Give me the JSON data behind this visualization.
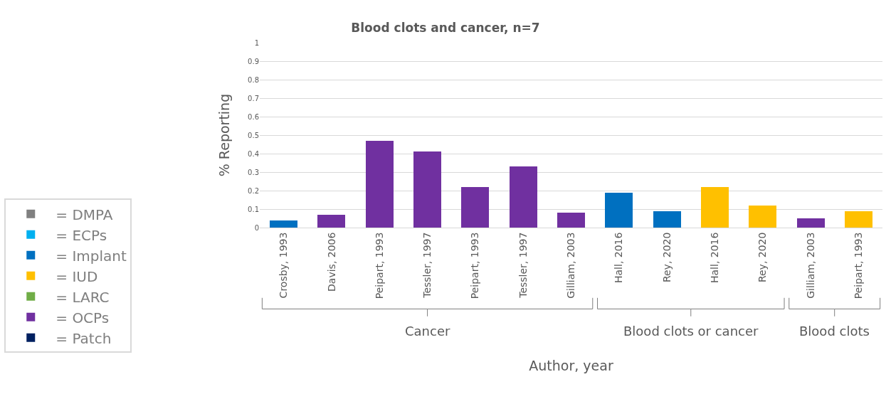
{
  "chart_data": {
    "type": "bar",
    "stacked": true,
    "title": "Blood clots and cancer, n=7",
    "xlabel": "Author, year",
    "ylabel": "% Reporting",
    "categories": [
      "Crosby, 1993",
      "Davis, 2006",
      "Peipart, 1993",
      "Tessler, 1997",
      "Peipart, 1993",
      "Tessler, 1997",
      "Gilliam, 2003",
      "Hall, 2016",
      "Rey, 2020",
      "Hall, 2016",
      "Rey, 2020",
      "Gilliam, 2003",
      "Peipart, 1993"
    ],
    "series": [
      {
        "name": "= DMPA",
        "color": "#808080",
        "values": [
          null,
          null,
          null,
          null,
          null,
          null,
          null,
          null,
          null,
          null,
          null,
          null,
          null
        ]
      },
      {
        "name": "= ECPs",
        "color": "#00b0f0",
        "values": [
          null,
          null,
          null,
          null,
          null,
          null,
          null,
          null,
          null,
          null,
          null,
          null,
          null
        ]
      },
      {
        "name": "= Implant",
        "color": "#0070c0",
        "values": [
          0.04,
          null,
          null,
          null,
          null,
          null,
          null,
          0.19,
          0.09,
          null,
          null,
          null,
          null
        ]
      },
      {
        "name": "= IUD",
        "color": "#ffc000",
        "values": [
          null,
          null,
          null,
          null,
          null,
          null,
          null,
          null,
          null,
          0.22,
          0.12,
          null,
          0.09
        ]
      },
      {
        "name": "= LARC",
        "color": "#70ad47",
        "values": [
          null,
          null,
          null,
          null,
          null,
          null,
          null,
          null,
          null,
          null,
          null,
          null,
          null
        ]
      },
      {
        "name": "= OCPs",
        "color": "#7030a0",
        "values": [
          null,
          0.07,
          0.47,
          0.41,
          0.22,
          0.33,
          0.08,
          null,
          null,
          null,
          null,
          0.05,
          null
        ]
      },
      {
        "name": "= Patch",
        "color": "#002060",
        "values": [
          null,
          null,
          null,
          null,
          null,
          null,
          null,
          null,
          null,
          null,
          null,
          null,
          null
        ]
      }
    ],
    "ylim": [
      0,
      1
    ],
    "yticks": [
      0,
      0.1,
      0.2,
      0.3,
      0.4,
      0.5,
      0.6,
      0.7,
      0.8,
      0.9,
      1
    ],
    "grid": "y",
    "legend": "left",
    "annotations": [
      "Cancer",
      "Blood clots or cancer",
      "Blood clots"
    ]
  }
}
